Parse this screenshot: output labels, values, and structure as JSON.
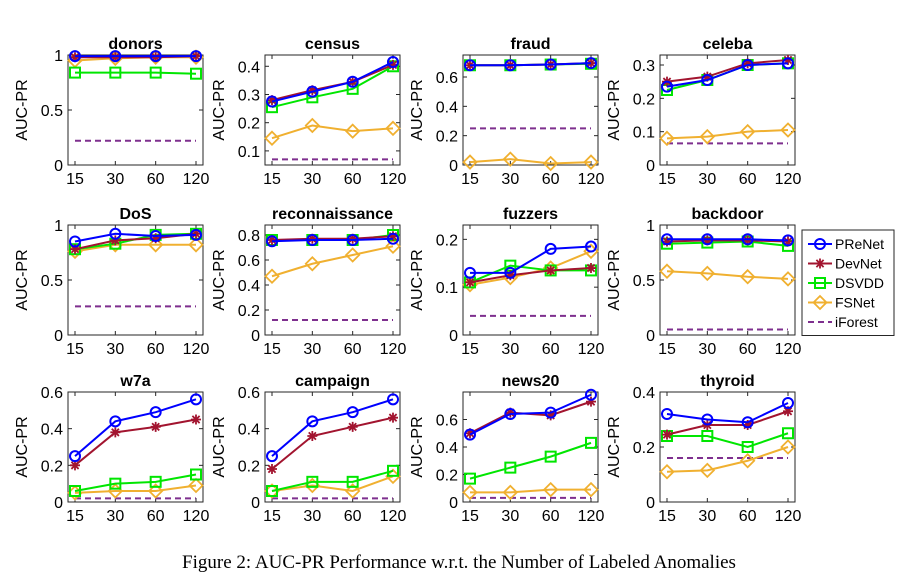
{
  "caption": "Figure 2: AUC-PR Performance w.r.t. the Number of Labeled Anomalies",
  "legend": {
    "placement": "right of the second row",
    "entries": [
      {
        "name": "PReNet",
        "color": "#0000ff",
        "marker": "circle"
      },
      {
        "name": "DevNet",
        "color": "#a2142f",
        "marker": "asterisk"
      },
      {
        "name": "DSVDD",
        "color": "#00e600",
        "marker": "square"
      },
      {
        "name": "FSNet",
        "color": "#f0b030",
        "marker": "diamond"
      },
      {
        "name": "iForest",
        "color": "#7e2f8e",
        "marker": "dashed-line"
      }
    ]
  },
  "chart_data": [
    {
      "type": "line",
      "title": "donors",
      "ylabel": "AUC-PR",
      "categories": [
        "15",
        "30",
        "60",
        "120"
      ],
      "ylim": [
        0,
        1
      ],
      "yticks": [
        0,
        0.5,
        1
      ],
      "ytick_labels": [
        "0",
        "0.5",
        "1"
      ],
      "series": [
        {
          "name": "PReNet",
          "values": [
            0.99,
            0.99,
            0.99,
            0.99
          ]
        },
        {
          "name": "DevNet",
          "values": [
            0.98,
            0.98,
            0.98,
            0.99
          ]
        },
        {
          "name": "DSVDD",
          "values": [
            0.84,
            0.84,
            0.84,
            0.83
          ]
        },
        {
          "name": "FSNet",
          "values": [
            0.95,
            0.97,
            0.98,
            0.98
          ]
        },
        {
          "name": "iForest",
          "values": [
            0.22,
            0.22,
            0.22,
            0.22
          ]
        }
      ]
    },
    {
      "type": "line",
      "title": "census",
      "ylabel": "AUC-PR",
      "categories": [
        "15",
        "30",
        "60",
        "120"
      ],
      "ylim": [
        0.05,
        0.44
      ],
      "yticks": [
        0.1,
        0.2,
        0.3,
        0.4
      ],
      "ytick_labels": [
        "0.1",
        "0.2",
        "0.3",
        "0.4"
      ],
      "series": [
        {
          "name": "PReNet",
          "values": [
            0.275,
            0.31,
            0.345,
            0.415
          ]
        },
        {
          "name": "DevNet",
          "values": [
            0.28,
            0.315,
            0.345,
            0.405
          ]
        },
        {
          "name": "DSVDD",
          "values": [
            0.255,
            0.29,
            0.32,
            0.4
          ]
        },
        {
          "name": "FSNet",
          "values": [
            0.145,
            0.19,
            0.17,
            0.18
          ]
        },
        {
          "name": "iForest",
          "values": [
            0.07,
            0.07,
            0.07,
            0.07
          ]
        }
      ]
    },
    {
      "type": "line",
      "title": "fraud",
      "ylabel": "AUC-PR",
      "categories": [
        "15",
        "30",
        "60",
        "120"
      ],
      "ylim": [
        0,
        0.75
      ],
      "yticks": [
        0,
        0.2,
        0.4,
        0.6
      ],
      "ytick_labels": [
        "0",
        "0.2",
        "0.4",
        "0.6"
      ],
      "series": [
        {
          "name": "PReNet",
          "values": [
            0.68,
            0.68,
            0.685,
            0.695
          ]
        },
        {
          "name": "DevNet",
          "values": [
            0.68,
            0.68,
            0.685,
            0.695
          ]
        },
        {
          "name": "DSVDD",
          "values": [
            0.68,
            0.68,
            0.685,
            0.69
          ]
        },
        {
          "name": "FSNet",
          "values": [
            0.02,
            0.04,
            0.01,
            0.02
          ]
        },
        {
          "name": "iForest",
          "values": [
            0.25,
            0.25,
            0.25,
            0.25
          ]
        }
      ]
    },
    {
      "type": "line",
      "title": "celeba",
      "ylabel": "AUC-PR",
      "categories": [
        "15",
        "30",
        "60",
        "120"
      ],
      "ylim": [
        0,
        0.33
      ],
      "yticks": [
        0,
        0.1,
        0.2,
        0.3
      ],
      "ytick_labels": [
        "0",
        "0.1",
        "0.2",
        "0.3"
      ],
      "series": [
        {
          "name": "PReNet",
          "values": [
            0.235,
            0.255,
            0.3,
            0.305
          ]
        },
        {
          "name": "DevNet",
          "values": [
            0.25,
            0.265,
            0.305,
            0.315
          ]
        },
        {
          "name": "DSVDD",
          "values": [
            0.225,
            0.255,
            0.3,
            0.305
          ]
        },
        {
          "name": "FSNet",
          "values": [
            0.08,
            0.085,
            0.1,
            0.105
          ]
        },
        {
          "name": "iForest",
          "values": [
            0.065,
            0.065,
            0.065,
            0.065
          ]
        }
      ]
    },
    {
      "type": "line",
      "title": "DoS",
      "ylabel": "AUC-PR",
      "categories": [
        "15",
        "30",
        "60",
        "120"
      ],
      "ylim": [
        0,
        1
      ],
      "yticks": [
        0,
        0.5,
        1
      ],
      "ytick_labels": [
        "0",
        "0.5",
        "1"
      ],
      "series": [
        {
          "name": "PReNet",
          "values": [
            0.85,
            0.92,
            0.9,
            0.91
          ]
        },
        {
          "name": "DevNet",
          "values": [
            0.78,
            0.86,
            0.88,
            0.92
          ]
        },
        {
          "name": "DSVDD",
          "values": [
            0.78,
            0.83,
            0.91,
            0.92
          ]
        },
        {
          "name": "FSNet",
          "values": [
            0.76,
            0.82,
            0.82,
            0.82
          ]
        },
        {
          "name": "iForest",
          "values": [
            0.26,
            0.26,
            0.26,
            0.26
          ]
        }
      ]
    },
    {
      "type": "line",
      "title": "reconnaissance",
      "ylabel": "AUC-PR",
      "categories": [
        "15",
        "30",
        "60",
        "120"
      ],
      "ylim": [
        0,
        0.88
      ],
      "yticks": [
        0,
        0.2,
        0.4,
        0.6,
        0.8
      ],
      "ytick_labels": [
        "0",
        "0.2",
        "0.4",
        "0.6",
        "0.8"
      ],
      "series": [
        {
          "name": "PReNet",
          "values": [
            0.75,
            0.76,
            0.76,
            0.77
          ]
        },
        {
          "name": "DevNet",
          "values": [
            0.76,
            0.77,
            0.77,
            0.79
          ]
        },
        {
          "name": "DSVDD",
          "values": [
            0.76,
            0.76,
            0.76,
            0.8
          ]
        },
        {
          "name": "FSNet",
          "values": [
            0.47,
            0.57,
            0.64,
            0.71
          ]
        },
        {
          "name": "iForest",
          "values": [
            0.12,
            0.12,
            0.12,
            0.12
          ]
        }
      ]
    },
    {
      "type": "line",
      "title": "fuzzers",
      "ylabel": "AUC-PR",
      "categories": [
        "15",
        "30",
        "60",
        "120"
      ],
      "ylim": [
        0,
        0.23
      ],
      "yticks": [
        0,
        0.1,
        0.2
      ],
      "ytick_labels": [
        "0",
        "0.1",
        "0.2"
      ],
      "series": [
        {
          "name": "PReNet",
          "values": [
            0.13,
            0.13,
            0.18,
            0.185
          ]
        },
        {
          "name": "DevNet",
          "values": [
            0.11,
            0.125,
            0.135,
            0.14
          ]
        },
        {
          "name": "DSVDD",
          "values": [
            0.11,
            0.145,
            0.135,
            0.135
          ]
        },
        {
          "name": "FSNet",
          "values": [
            0.105,
            0.12,
            0.14,
            0.175
          ]
        },
        {
          "name": "iForest",
          "values": [
            0.04,
            0.04,
            0.04,
            0.04
          ]
        }
      ]
    },
    {
      "type": "line",
      "title": "backdoor",
      "ylabel": "AUC-PR",
      "categories": [
        "15",
        "30",
        "60",
        "120"
      ],
      "ylim": [
        0,
        1
      ],
      "yticks": [
        0,
        0.5,
        1
      ],
      "ytick_labels": [
        "0",
        "0.5",
        "1"
      ],
      "series": [
        {
          "name": "PReNet",
          "values": [
            0.87,
            0.87,
            0.87,
            0.86
          ]
        },
        {
          "name": "DevNet",
          "values": [
            0.85,
            0.86,
            0.86,
            0.85
          ]
        },
        {
          "name": "DSVDD",
          "values": [
            0.83,
            0.84,
            0.85,
            0.81
          ]
        },
        {
          "name": "FSNet",
          "values": [
            0.58,
            0.56,
            0.53,
            0.51
          ]
        },
        {
          "name": "iForest",
          "values": [
            0.05,
            0.05,
            0.05,
            0.05
          ]
        }
      ]
    },
    {
      "type": "line",
      "title": "w7a",
      "ylabel": "AUC-PR",
      "categories": [
        "15",
        "30",
        "60",
        "120"
      ],
      "ylim": [
        0,
        0.6
      ],
      "yticks": [
        0,
        0.2,
        0.4,
        0.6
      ],
      "ytick_labels": [
        "0",
        "0.2",
        "0.4",
        "0.6"
      ],
      "series": [
        {
          "name": "PReNet",
          "values": [
            0.25,
            0.44,
            0.49,
            0.56
          ]
        },
        {
          "name": "DevNet",
          "values": [
            0.2,
            0.38,
            0.41,
            0.45
          ]
        },
        {
          "name": "DSVDD",
          "values": [
            0.06,
            0.1,
            0.11,
            0.15
          ]
        },
        {
          "name": "FSNet",
          "values": [
            0.05,
            0.06,
            0.06,
            0.09
          ]
        },
        {
          "name": "iForest",
          "values": [
            0.02,
            0.02,
            0.02,
            0.02
          ]
        }
      ]
    },
    {
      "type": "line",
      "title": "campaign",
      "ylabel": "AUC-PR",
      "categories": [
        "15",
        "30",
        "60",
        "120"
      ],
      "ylim": [
        0,
        0.6
      ],
      "yticks": [
        0,
        0.2,
        0.4,
        0.6
      ],
      "ytick_labels": [
        "0",
        "0.2",
        "0.4",
        "0.6"
      ],
      "series": [
        {
          "name": "PReNet",
          "values": [
            0.25,
            0.44,
            0.49,
            0.56
          ]
        },
        {
          "name": "DevNet",
          "values": [
            0.18,
            0.36,
            0.41,
            0.46
          ]
        },
        {
          "name": "DSVDD",
          "values": [
            0.06,
            0.11,
            0.11,
            0.17
          ]
        },
        {
          "name": "FSNet",
          "values": [
            0.06,
            0.09,
            0.06,
            0.14
          ]
        },
        {
          "name": "iForest",
          "values": [
            0.02,
            0.02,
            0.02,
            0.02
          ]
        }
      ]
    },
    {
      "type": "line",
      "title": "news20",
      "ylabel": "AUC-PR",
      "categories": [
        "15",
        "30",
        "60",
        "120"
      ],
      "ylim": [
        0,
        0.8
      ],
      "yticks": [
        0,
        0.2,
        0.4,
        0.6
      ],
      "ytick_labels": [
        "0",
        "0.2",
        "0.4",
        "0.6"
      ],
      "series": [
        {
          "name": "PReNet",
          "values": [
            0.49,
            0.64,
            0.65,
            0.78
          ]
        },
        {
          "name": "DevNet",
          "values": [
            0.5,
            0.65,
            0.63,
            0.73
          ]
        },
        {
          "name": "DSVDD",
          "values": [
            0.17,
            0.25,
            0.33,
            0.43
          ]
        },
        {
          "name": "FSNet",
          "values": [
            0.07,
            0.07,
            0.09,
            0.09
          ]
        },
        {
          "name": "iForest",
          "values": [
            0.03,
            0.03,
            0.03,
            0.03
          ]
        }
      ]
    },
    {
      "type": "line",
      "title": "thyroid",
      "ylabel": "AUC-PR",
      "categories": [
        "15",
        "30",
        "60",
        "120"
      ],
      "ylim": [
        0,
        0.4
      ],
      "yticks": [
        0,
        0.2,
        0.4
      ],
      "ytick_labels": [
        "0",
        "0.2",
        "0.4"
      ],
      "series": [
        {
          "name": "PReNet",
          "values": [
            0.32,
            0.3,
            0.29,
            0.36
          ]
        },
        {
          "name": "DevNet",
          "values": [
            0.245,
            0.28,
            0.28,
            0.33
          ]
        },
        {
          "name": "DSVDD",
          "values": [
            0.24,
            0.24,
            0.2,
            0.25
          ]
        },
        {
          "name": "FSNet",
          "values": [
            0.11,
            0.115,
            0.15,
            0.2
          ]
        },
        {
          "name": "iForest",
          "values": [
            0.16,
            0.16,
            0.16,
            0.16
          ]
        }
      ]
    }
  ]
}
